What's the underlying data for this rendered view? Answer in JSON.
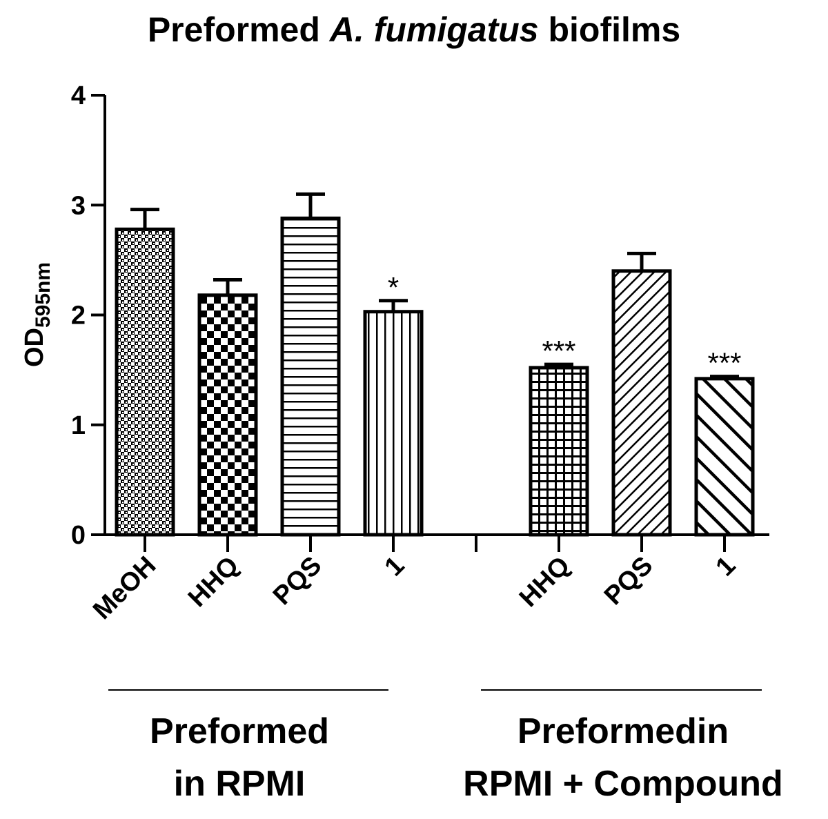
{
  "chart_data": {
    "type": "bar",
    "title_plain": "Preformed ",
    "title_italic": "A. fumigatus",
    "title_end": " biofilms",
    "ylabel_main": "OD",
    "ylabel_sub": "595nm",
    "ylim": [
      0,
      4
    ],
    "yticks": [
      "0",
      "1",
      "2",
      "3",
      "4"
    ],
    "bars": [
      {
        "category": "MeOH",
        "value": 2.78,
        "error": 0.18,
        "sig": "",
        "pattern": "dots"
      },
      {
        "category": "HHQ",
        "value": 2.18,
        "error": 0.14,
        "sig": "",
        "pattern": "checker"
      },
      {
        "category": "PQS",
        "value": 2.88,
        "error": 0.22,
        "sig": "",
        "pattern": "hlines"
      },
      {
        "category": "1",
        "value": 2.03,
        "error": 0.1,
        "sig": "*",
        "pattern": "vlines"
      },
      {
        "category": "HHQ",
        "value": 1.52,
        "error": 0.03,
        "sig": "***",
        "pattern": "grid"
      },
      {
        "category": "PQS",
        "value": 2.4,
        "error": 0.16,
        "sig": "",
        "pattern": "diag-fwd"
      },
      {
        "category": "1",
        "value": 1.42,
        "error": 0.02,
        "sig": "***",
        "pattern": "diag-back"
      }
    ],
    "groups": [
      {
        "line1": "Preformed",
        "line2": "in RPMI"
      },
      {
        "line1": "Preformedin",
        "line2": "RPMI + Compound"
      }
    ]
  }
}
